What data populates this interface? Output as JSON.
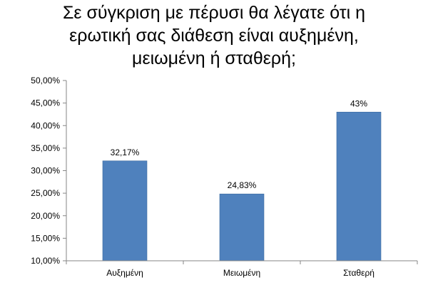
{
  "chart_data": {
    "type": "bar",
    "title_lines": [
      "Σε σύγκριση με πέρυσι θα λέγατε ότι η",
      "ερωτική σας διάθεση είναι αυξημένη,",
      "μειωμένη ή σταθερή;"
    ],
    "categories": [
      "Αυξημένη",
      "Μειωμένη",
      "Σταθερή"
    ],
    "values": [
      32.17,
      24.83,
      43
    ],
    "data_labels": [
      "32,17%",
      "24,83%",
      "43%"
    ],
    "ylim": [
      10,
      50
    ],
    "yticks": [
      10,
      15,
      20,
      25,
      30,
      35,
      40,
      45,
      50
    ],
    "ytick_labels": [
      "10,00%",
      "15,00%",
      "20,00%",
      "25,00%",
      "30,00%",
      "35,00%",
      "40,00%",
      "45,00%",
      "50,00%"
    ],
    "xlabel": "",
    "ylabel": "",
    "grid": false,
    "legend": false,
    "bar_color": "#4F81BD"
  }
}
